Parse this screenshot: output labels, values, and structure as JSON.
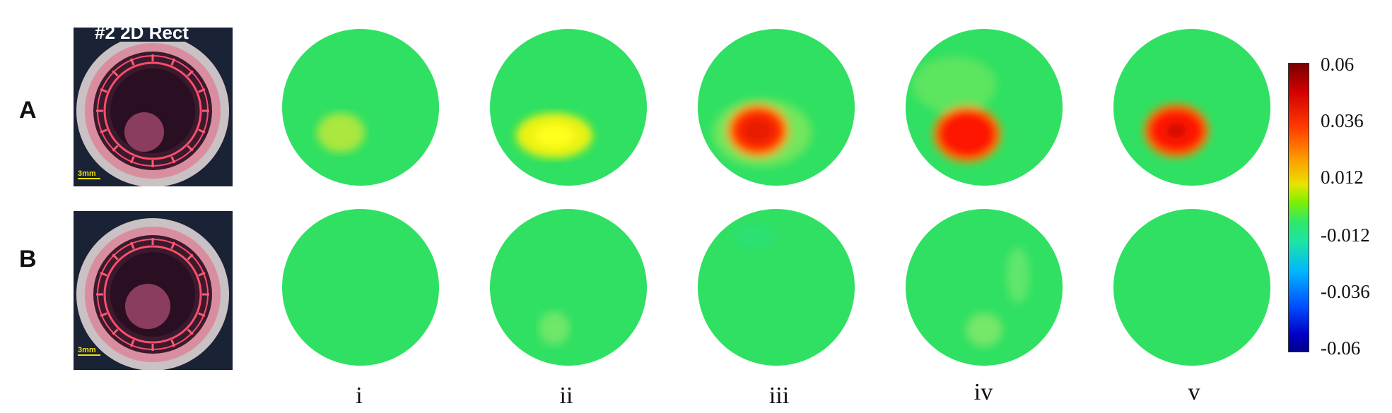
{
  "rows": [
    {
      "label": "A",
      "photo_caption": "#2 2D Rect",
      "scale_bar": "3mm"
    },
    {
      "label": "B",
      "photo_caption": "",
      "scale_bar": "3mm"
    }
  ],
  "columns": [
    "i",
    "ii",
    "iii",
    "iv",
    "v"
  ],
  "colorbar": {
    "ticks": [
      "0.06",
      "0.036",
      "0.012",
      "-0.012",
      "-0.036",
      "-0.06"
    ],
    "min": -0.06,
    "max": 0.06,
    "colormap": "jet"
  },
  "colors": {
    "background_green": "#2fe062",
    "anomaly_red": "#ff1a00"
  }
}
